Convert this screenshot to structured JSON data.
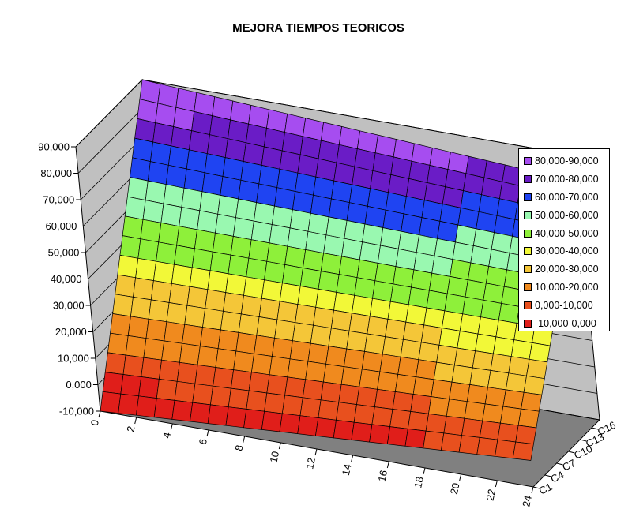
{
  "chart_data": {
    "type": "surface",
    "title": "MEJORA TIEMPOS TEORICOS",
    "z_axis": {
      "ticks": [
        "-10,000",
        "0,000",
        "10,000",
        "20,000",
        "30,000",
        "40,000",
        "50,000",
        "60,000",
        "70,000",
        "80,000",
        "90,000"
      ],
      "range": [
        -10000,
        90000
      ]
    },
    "x_axis": {
      "ticks": [
        "0",
        "2",
        "4",
        "6",
        "8",
        "10",
        "12",
        "14",
        "16",
        "18",
        "20",
        "22",
        "24"
      ],
      "range": [
        0,
        24
      ]
    },
    "y_axis": {
      "ticks": [
        "C1",
        "C4",
        "C7",
        "C10",
        "C13",
        "C16"
      ],
      "series_count": 18
    },
    "surface_corners": {
      "x0_C1": -10000,
      "x24_C1": 0,
      "x0_C18": 90000,
      "x24_C18": 80000
    },
    "legend_position": "right",
    "legend": [
      {
        "label": "80,000-90,000",
        "color": "#a64df0"
      },
      {
        "label": "70,000-80,000",
        "color": "#6a1cc6"
      },
      {
        "label": "60,000-70,000",
        "color": "#1f44f2"
      },
      {
        "label": "50,000-60,000",
        "color": "#99f8b0"
      },
      {
        "label": "40,000-50,000",
        "color": "#8ef03a"
      },
      {
        "label": "30,000-40,000",
        "color": "#f2f838"
      },
      {
        "label": "20,000-30,000",
        "color": "#f4c638"
      },
      {
        "label": "10,000-20,000",
        "color": "#f08a1e"
      },
      {
        "label": "0,000-10,000",
        "color": "#e8501e"
      },
      {
        "label": "-10,000-0,000",
        "color": "#e01e1a"
      }
    ],
    "wall_color": "#c0c0c0",
    "floor_color": "#808080"
  }
}
